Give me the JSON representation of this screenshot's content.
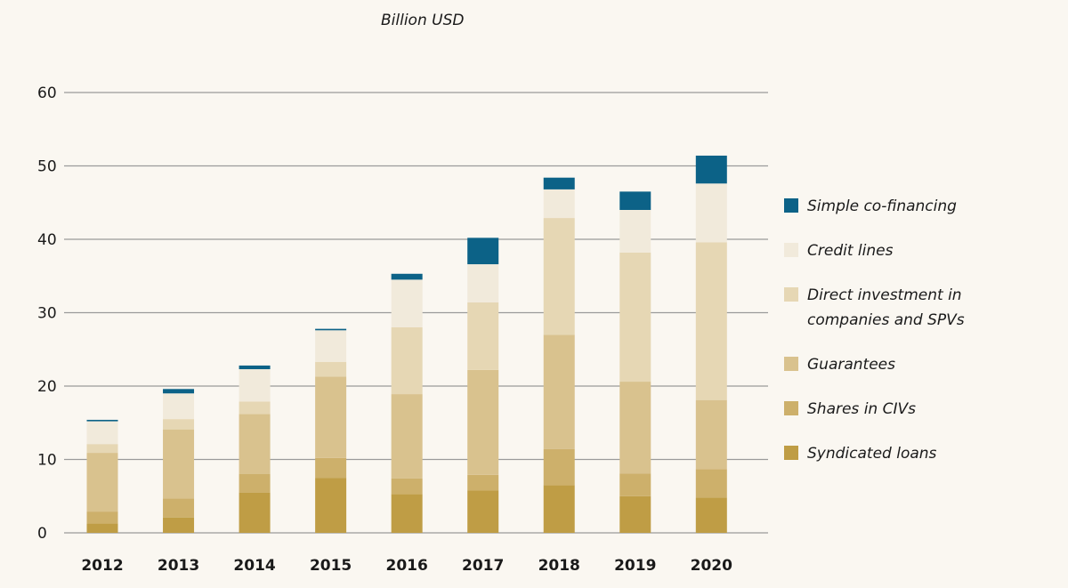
{
  "chart_data": {
    "type": "bar",
    "stacked": true,
    "title": "Billion USD",
    "xlabel": "",
    "ylabel": "Billion USD",
    "ylim": [
      0,
      60
    ],
    "yticks": [
      0,
      10,
      20,
      30,
      40,
      50,
      60
    ],
    "grid": true,
    "legend_position": "right",
    "categories": [
      "2012",
      "2013",
      "2014",
      "2015",
      "2016",
      "2017",
      "2018",
      "2019",
      "2020"
    ],
    "series": [
      {
        "name": "Syndicated loans",
        "color": "#bf9d45",
        "values": [
          1.3,
          2.1,
          5.5,
          7.5,
          5.3,
          5.8,
          6.5,
          5.0,
          4.8
        ]
      },
      {
        "name": "Shares in CIVs",
        "color": "#cdb06b",
        "values": [
          1.6,
          2.6,
          2.5,
          2.7,
          2.1,
          2.1,
          4.9,
          3.1,
          3.9
        ]
      },
      {
        "name": "Guarantees",
        "color": "#d9c28e",
        "values": [
          8.0,
          9.4,
          8.2,
          11.1,
          11.5,
          14.3,
          15.6,
          12.5,
          9.4
        ]
      },
      {
        "name": "Direct investment in companies and SPVs",
        "color": "#e6d7b4",
        "values": [
          1.2,
          1.4,
          1.7,
          2.0,
          9.1,
          9.2,
          15.9,
          17.6,
          21.5
        ]
      },
      {
        "name": "Credit lines",
        "color": "#f1eadb",
        "values": [
          3.1,
          3.5,
          4.4,
          4.3,
          6.5,
          5.2,
          3.9,
          5.8,
          8.0
        ]
      },
      {
        "name": "Simple co-financing",
        "color": "#0c6287",
        "values": [
          0.2,
          0.6,
          0.5,
          0.2,
          0.8,
          3.6,
          1.6,
          2.5,
          3.8
        ]
      }
    ],
    "legend_order": [
      "Simple co-financing",
      "Credit lines",
      "Direct investment in companies and SPVs",
      "Guarantees",
      "Shares in CIVs",
      "Syndicated loans"
    ]
  }
}
